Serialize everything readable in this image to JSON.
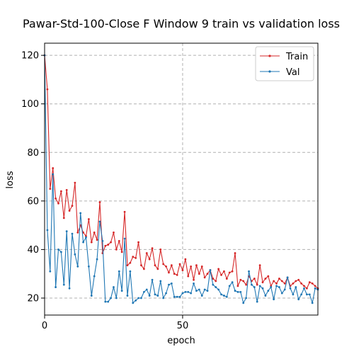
{
  "chart_data": {
    "type": "line",
    "title": "Pawar-Std-100-Close F Window 9 train vs validation loss",
    "xlabel": "epoch",
    "ylabel": "loss",
    "xlim": [
      0,
      99
    ],
    "ylim": [
      13,
      125
    ],
    "xticks": [
      0,
      50
    ],
    "yticks": [
      20,
      40,
      60,
      80,
      100,
      120
    ],
    "grid": true,
    "legend": "top-right",
    "series": [
      {
        "name": "Train",
        "color": "#d62728",
        "x": [
          0,
          1,
          2,
          3,
          4,
          5,
          6,
          7,
          8,
          9,
          10,
          11,
          12,
          13,
          14,
          15,
          16,
          17,
          18,
          19,
          20,
          21,
          22,
          23,
          24,
          25,
          26,
          27,
          28,
          29,
          30,
          31,
          32,
          33,
          34,
          35,
          36,
          37,
          38,
          39,
          40,
          41,
          42,
          43,
          44,
          45,
          46,
          47,
          48,
          49,
          50,
          51,
          52,
          53,
          54,
          55,
          56,
          57,
          58,
          59,
          60,
          61,
          62,
          63,
          64,
          65,
          66,
          67,
          68,
          69,
          70,
          71,
          72,
          73,
          74,
          75,
          76,
          77,
          78,
          79,
          80,
          81,
          82,
          83,
          84,
          85,
          86,
          87,
          88,
          89,
          90,
          91,
          92,
          93,
          94,
          95,
          96,
          97,
          98,
          99
        ],
        "values": [
          120,
          106,
          65,
          73.5,
          61,
          59,
          64,
          53,
          64.5,
          56,
          58,
          67.5,
          47,
          50,
          47,
          45.5,
          52.5,
          43,
          47,
          44,
          59.5,
          38.5,
          41.5,
          42,
          43,
          47,
          40,
          43.5,
          39,
          55.5,
          33.5,
          34.5,
          37,
          36.5,
          43,
          33.5,
          32,
          38.5,
          36,
          40.5,
          33.5,
          32,
          40,
          34,
          33,
          30.5,
          33.5,
          30,
          29.5,
          34,
          31.5,
          36,
          29,
          33,
          27.5,
          33.5,
          30,
          33,
          28.5,
          30,
          31.5,
          28,
          27,
          32,
          29.5,
          31,
          28,
          30.5,
          31,
          38.5,
          25,
          27.5,
          27,
          25.5,
          29,
          27,
          28,
          25.5,
          33.5,
          26.5,
          28,
          29,
          25,
          27,
          26,
          28,
          27,
          26,
          28.5,
          25,
          26,
          27,
          27.5,
          26,
          25,
          24,
          26.5,
          26,
          25,
          24
        ]
      },
      {
        "name": "Val",
        "color": "#1f77b4",
        "x": [
          0,
          1,
          2,
          3,
          4,
          5,
          6,
          7,
          8,
          9,
          10,
          11,
          12,
          13,
          14,
          15,
          16,
          17,
          18,
          19,
          20,
          21,
          22,
          23,
          24,
          25,
          26,
          27,
          28,
          29,
          30,
          31,
          32,
          33,
          34,
          35,
          36,
          37,
          38,
          39,
          40,
          41,
          42,
          43,
          44,
          45,
          46,
          47,
          48,
          49,
          50,
          51,
          52,
          53,
          54,
          55,
          56,
          57,
          58,
          59,
          60,
          61,
          62,
          63,
          64,
          65,
          66,
          67,
          68,
          69,
          70,
          71,
          72,
          73,
          74,
          75,
          76,
          77,
          78,
          79,
          80,
          81,
          82,
          83,
          84,
          85,
          86,
          87,
          88,
          89,
          90,
          91,
          92,
          93,
          94,
          95,
          96,
          97,
          98,
          99
        ],
        "values": [
          120,
          48,
          31,
          71,
          24.5,
          40,
          39,
          25.5,
          47.5,
          24,
          46.5,
          38,
          33,
          55,
          43,
          45,
          33,
          21,
          29,
          36,
          51.5,
          43.5,
          18.5,
          18.5,
          20,
          24.5,
          20,
          31,
          23,
          44.5,
          21,
          31,
          18,
          19,
          20,
          20,
          22.5,
          23.5,
          21,
          27.5,
          21.5,
          21,
          27,
          20,
          22,
          25.5,
          26,
          20.5,
          20.5,
          20.5,
          22,
          22.5,
          22.5,
          22,
          26,
          23,
          23.5,
          21,
          23.5,
          23,
          31.5,
          25.5,
          24.5,
          23.5,
          21.5,
          21,
          20.5,
          25,
          26.5,
          23,
          22.5,
          22.5,
          18,
          20,
          31,
          25.5,
          24.5,
          18.5,
          25,
          24,
          21,
          23,
          24.5,
          19.5,
          25,
          24.5,
          22,
          23.5,
          28.5,
          24,
          21.5,
          24.5,
          19.5,
          21.5,
          24,
          21.5,
          21.5,
          18,
          24,
          23.5
        ]
      }
    ]
  }
}
